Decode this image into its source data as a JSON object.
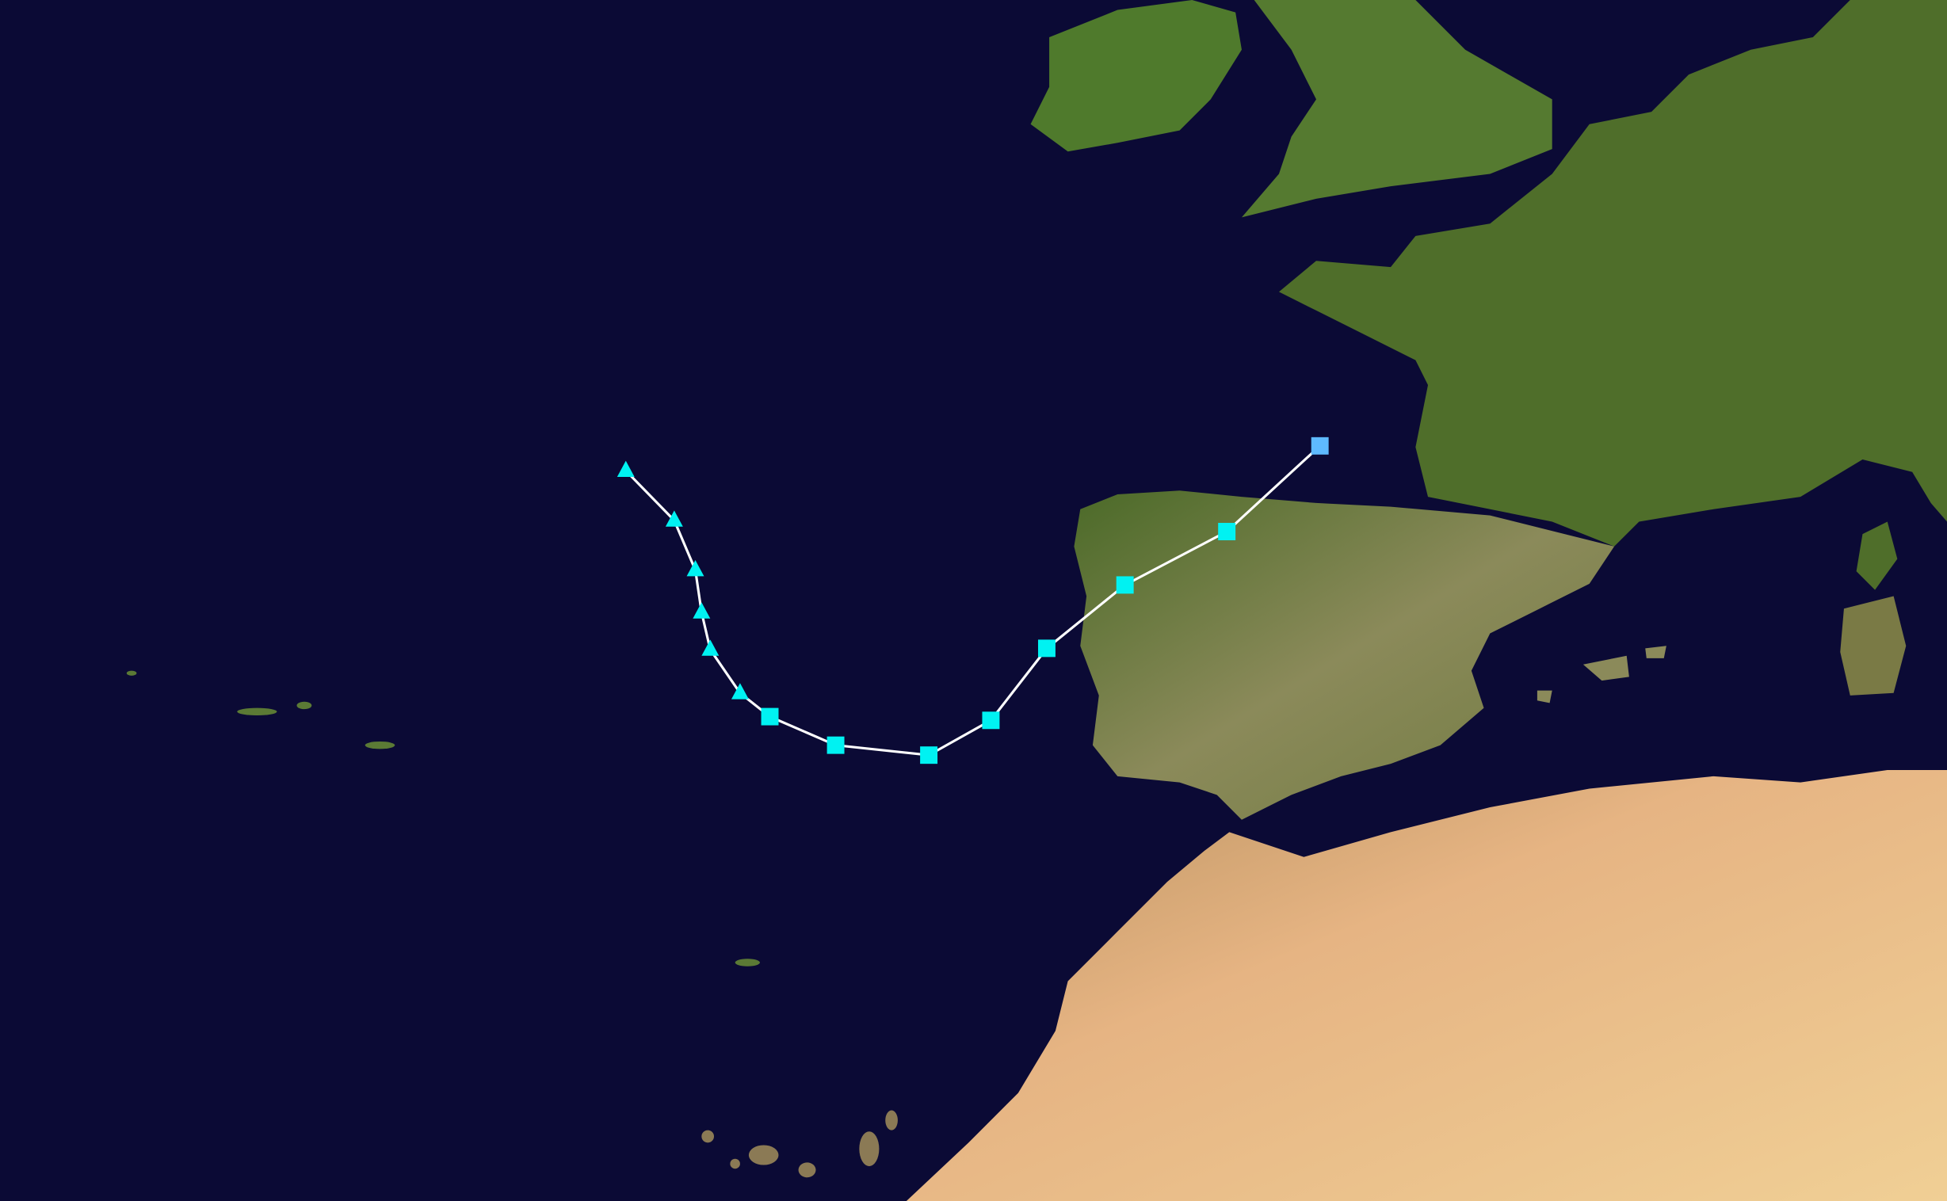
{
  "map": {
    "ocean_color": "#0b0a35",
    "land_colors": {
      "vegetation": "#4f6e2a",
      "arid": "#e0b07c",
      "semi_arid": "#9c9060"
    },
    "track_line_color": "#ffffff",
    "legend_colors": {
      "tropical_storm": "#00f2f2",
      "tropical_depression": "#5ebaff"
    },
    "track": [
      {
        "shape": "triangle",
        "category": "tropical_storm"
      },
      {
        "shape": "triangle",
        "category": "tropical_storm"
      },
      {
        "shape": "triangle",
        "category": "tropical_storm"
      },
      {
        "shape": "triangle",
        "category": "tropical_storm"
      },
      {
        "shape": "triangle",
        "category": "tropical_storm"
      },
      {
        "shape": "triangle",
        "category": "tropical_storm"
      },
      {
        "shape": "square",
        "category": "tropical_storm"
      },
      {
        "shape": "square",
        "category": "tropical_storm"
      },
      {
        "shape": "square",
        "category": "tropical_storm"
      },
      {
        "shape": "square",
        "category": "tropical_storm"
      },
      {
        "shape": "square",
        "category": "tropical_storm"
      },
      {
        "shape": "square",
        "category": "tropical_storm"
      },
      {
        "shape": "square",
        "category": "tropical_storm"
      },
      {
        "shape": "square",
        "category": "tropical_depression"
      }
    ]
  }
}
